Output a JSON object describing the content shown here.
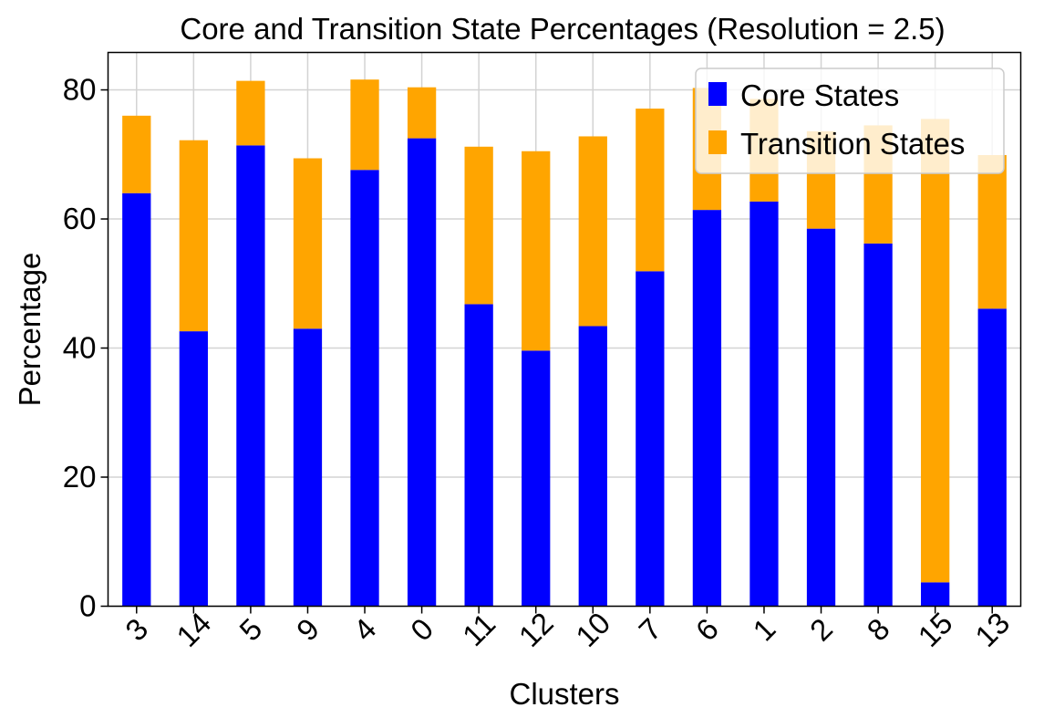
{
  "chart_data": {
    "type": "bar",
    "stacked": true,
    "title": "Core and Transition State Percentages (Resolution = 2.5)",
    "xlabel": "Clusters",
    "ylabel": "Percentage",
    "categories": [
      "3",
      "14",
      "5",
      "9",
      "4",
      "0",
      "11",
      "12",
      "10",
      "7",
      "6",
      "1",
      "2",
      "8",
      "15",
      "13"
    ],
    "series": [
      {
        "name": "Core States",
        "color": "#0000ff",
        "values": [
          64.0,
          42.6,
          71.4,
          43.0,
          67.6,
          72.5,
          46.8,
          39.6,
          43.4,
          51.9,
          61.4,
          62.7,
          58.5,
          56.2,
          3.7,
          46.1
        ]
      },
      {
        "name": "Transition States",
        "color": "#ffa500",
        "values": [
          12.0,
          29.6,
          10.0,
          26.4,
          14.0,
          7.9,
          24.4,
          30.9,
          29.4,
          25.2,
          18.9,
          15.9,
          15.1,
          18.3,
          71.8,
          23.8
        ]
      }
    ],
    "ylim": [
      0,
      85.8
    ],
    "yticks": [
      "0",
      "20",
      "40",
      "60",
      "80"
    ],
    "grid": true,
    "legend": "top-right"
  }
}
